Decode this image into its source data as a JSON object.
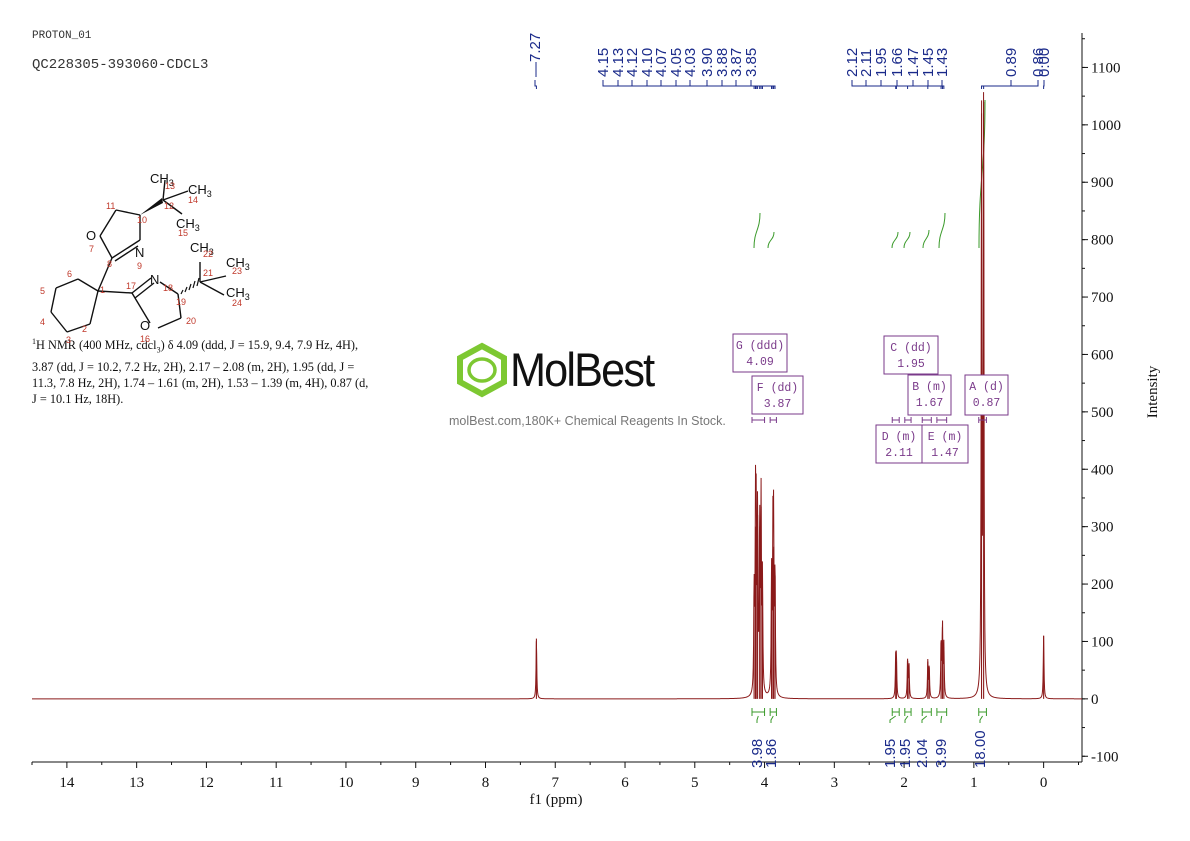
{
  "header": {
    "proton_label": "PROTON_01",
    "sample_label": "QC228305-393060-CDCL3"
  },
  "nmr_description": {
    "line1": "H NMR (400 MHz, cdcl",
    "line1_sub": "3",
    "line1_rest": ") δ 4.09 (ddd, J = 15.9, 9.4, 7.9 Hz, 4H),",
    "line2": "3.87 (dd, J = 10.2, 7.2 Hz, 2H), 2.17 – 2.08 (m, 2H), 1.95 (dd, J =",
    "line3": "11.3, 7.8 Hz, 2H), 1.74 – 1.61 (m, 2H), 1.53 – 1.39 (m, 4H), 0.87 (d,",
    "line4": "J = 10.1 Hz, 18H).",
    "superscript": "1"
  },
  "watermark": {
    "brand": "MolBest",
    "tagline": "molBest.com,180K+ Chemical Reagents In Stock."
  },
  "structure": {
    "atoms": [
      "O",
      "N",
      "N",
      "O",
      "CH3",
      "CH3",
      "CH3",
      "CH3",
      "CH3",
      "CH3"
    ],
    "atom_numbers": [
      "1",
      "2",
      "3",
      "4",
      "5",
      "6",
      "7",
      "8",
      "9",
      "10",
      "11",
      "12",
      "13",
      "14",
      "15",
      "16",
      "17",
      "18",
      "19",
      "20",
      "21",
      "22",
      "23",
      "24"
    ]
  },
  "chart_data": {
    "type": "line",
    "xlabel": "f1 (ppm)",
    "ylabel": "Intensity",
    "xlim": [
      14.5,
      -0.55
    ],
    "ylim": [
      -110,
      1160
    ],
    "x_ticks": [
      14,
      13,
      12,
      11,
      10,
      9,
      8,
      7,
      6,
      5,
      4,
      3,
      2,
      1,
      0
    ],
    "y_ticks": [
      -100,
      0,
      100,
      200,
      300,
      400,
      500,
      600,
      700,
      800,
      900,
      1000,
      1100
    ],
    "peaks": [
      {
        "ppm": 7.27,
        "height": 105
      },
      {
        "ppm": 4.15,
        "height": 180
      },
      {
        "ppm": 4.13,
        "height": 300
      },
      {
        "ppm": 4.12,
        "height": 270
      },
      {
        "ppm": 4.1,
        "height": 320
      },
      {
        "ppm": 4.07,
        "height": 300
      },
      {
        "ppm": 4.05,
        "height": 335
      },
      {
        "ppm": 4.03,
        "height": 200
      },
      {
        "ppm": 3.9,
        "height": 210
      },
      {
        "ppm": 3.88,
        "height": 260
      },
      {
        "ppm": 3.87,
        "height": 265
      },
      {
        "ppm": 3.85,
        "height": 215
      },
      {
        "ppm": 2.12,
        "height": 70
      },
      {
        "ppm": 2.11,
        "height": 65
      },
      {
        "ppm": 1.95,
        "height": 70
      },
      {
        "ppm": 1.93,
        "height": 60
      },
      {
        "ppm": 1.66,
        "height": 65
      },
      {
        "ppm": 1.64,
        "height": 55
      },
      {
        "ppm": 1.47,
        "height": 100
      },
      {
        "ppm": 1.45,
        "height": 125
      },
      {
        "ppm": 1.43,
        "height": 90
      },
      {
        "ppm": 0.89,
        "height": 1020
      },
      {
        "ppm": 0.86,
        "height": 1040
      },
      {
        "ppm": 0.0,
        "height": 110
      }
    ],
    "peak_labels": [
      "7.27",
      "4.15",
      "4.13",
      "4.12",
      "4.10",
      "4.07",
      "4.05",
      "4.03",
      "3.90",
      "3.88",
      "3.87",
      "3.85",
      "2.12",
      "2.11",
      "1.95",
      "1.66",
      "1.47",
      "1.45",
      "1.43",
      "0.89",
      "0.86",
      "0.00"
    ],
    "integrals": [
      {
        "from": 4.18,
        "to": 4.0,
        "value": "3.98"
      },
      {
        "from": 3.92,
        "to": 3.83,
        "value": "1.86"
      },
      {
        "from": 2.17,
        "to": 2.07,
        "value": "1.95"
      },
      {
        "from": 1.99,
        "to": 1.9,
        "value": "1.95"
      },
      {
        "from": 1.74,
        "to": 1.61,
        "value": "2.04"
      },
      {
        "from": 1.53,
        "to": 1.39,
        "value": "3.99"
      },
      {
        "from": 0.93,
        "to": 0.82,
        "value": "18.00"
      }
    ],
    "multiplets": [
      {
        "label": "A (d)",
        "value": "0.87"
      },
      {
        "label": "B (m)",
        "value": "1.67"
      },
      {
        "label": "C (dd)",
        "value": "1.95"
      },
      {
        "label": "D (m)",
        "value": "2.11"
      },
      {
        "label": "E (m)",
        "value": "1.47"
      },
      {
        "label": "F (dd)",
        "value": "3.87"
      },
      {
        "label": "G (ddd)",
        "value": "4.09"
      }
    ],
    "colors": {
      "spectrum": "#8b1a1a",
      "peak_labels": "#1a2a8a",
      "integral_curve": "#3a9a2a",
      "multiplet_box": "#7a3a8a",
      "logo_green": "#7dc832"
    }
  }
}
